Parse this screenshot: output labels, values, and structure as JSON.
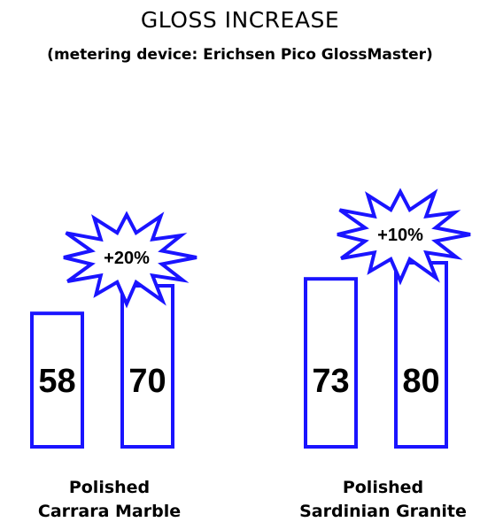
{
  "chart_data": {
    "type": "bar",
    "title": "GLOSS INCREASE",
    "subtitle": "(metering device: Erichsen Pico GlossMaster)",
    "xlabel": "",
    "ylabel": "",
    "ylim": [
      0,
      100
    ],
    "grid": false,
    "colors": {
      "bar_stroke": "#1a14ff",
      "bar_fill": "#ffffff",
      "starburst_stroke": "#1a14ff",
      "text": "#000000"
    },
    "groups": [
      {
        "label_lines": [
          "Polished",
          "Carrara Marble"
        ],
        "values": [
          58,
          70
        ],
        "value_labels": [
          "58",
          "70"
        ],
        "increase_label": "+20%"
      },
      {
        "label_lines": [
          "Polished",
          "Sardinian Granite"
        ],
        "values": [
          73,
          80
        ],
        "value_labels": [
          "73",
          "80"
        ],
        "increase_label": "+10%"
      }
    ]
  }
}
